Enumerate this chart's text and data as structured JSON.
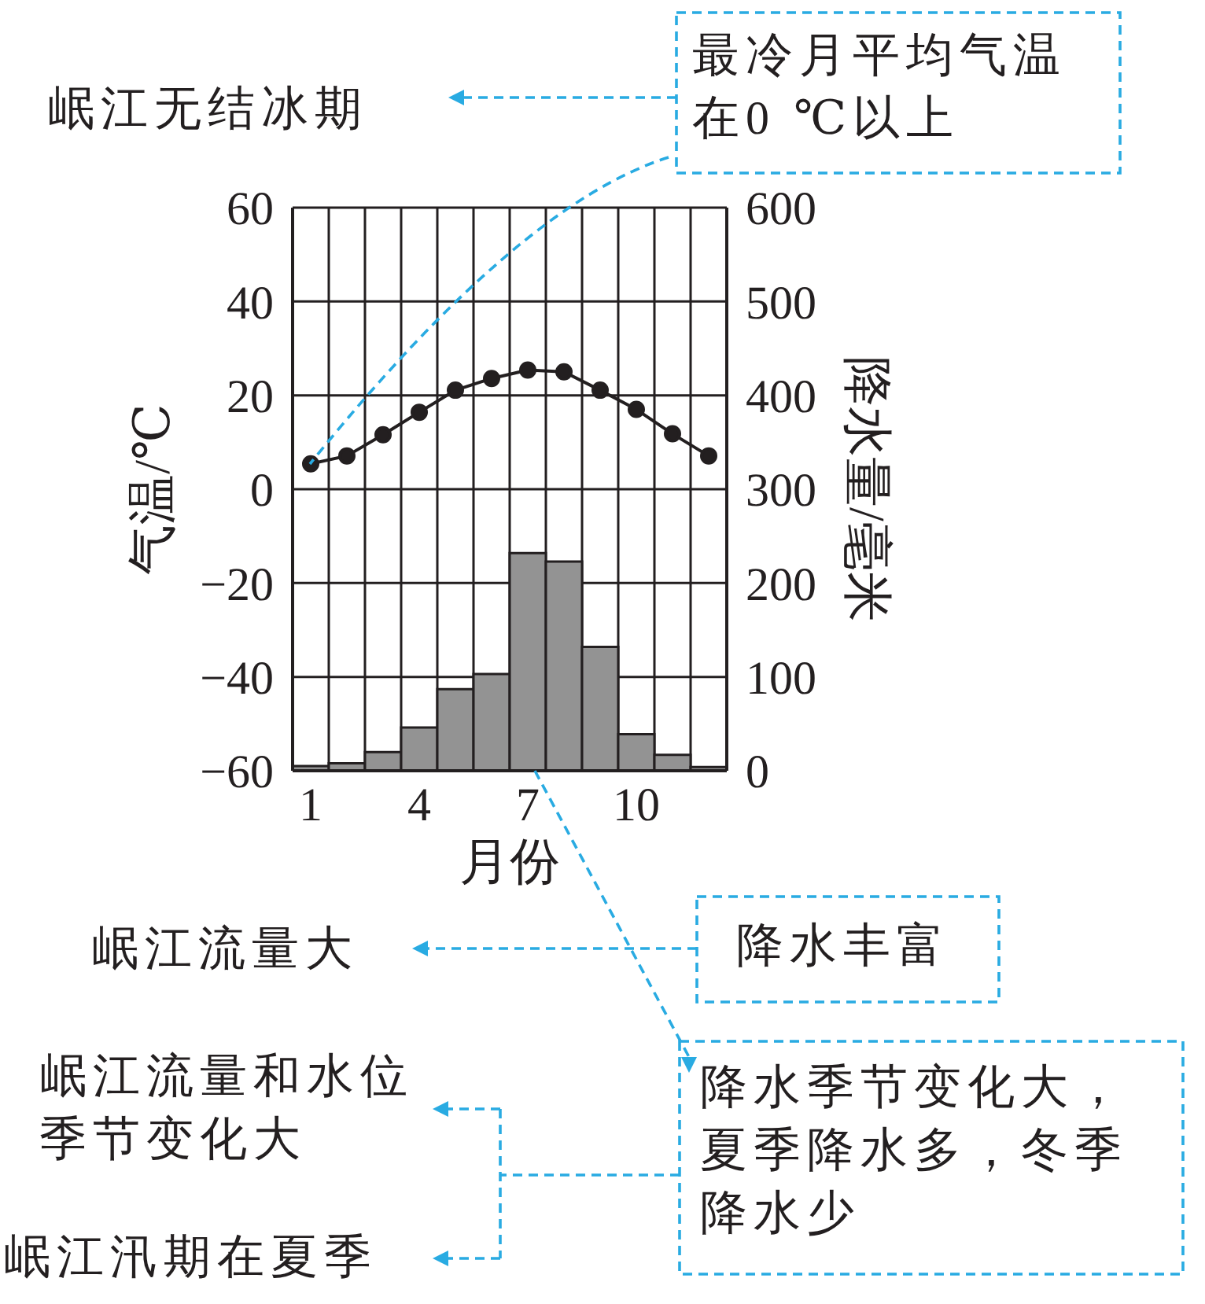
{
  "chart_data": {
    "type": "bar",
    "categories": [
      "1",
      null,
      null,
      "4",
      null,
      null,
      "7",
      null,
      null,
      "10",
      null,
      null
    ],
    "xlabel": "月份",
    "ylabel": "气温/℃",
    "y2label": "降水量/毫米",
    "series": [
      {
        "axis": "y2",
        "color": "#939393",
        "values": [
          5,
          8,
          20,
          46,
          87,
          103,
          232,
          223,
          132,
          39,
          17,
          4
        ]
      },
      {
        "type": "line",
        "axis": "y",
        "color": "#231f20",
        "marker": "circle",
        "values": [
          5.4,
          7.1,
          11.6,
          16.4,
          21.1,
          23.6,
          25.4,
          25,
          21.1,
          17,
          11.8,
          7.1
        ]
      }
    ],
    "ylim": [
      -60,
      60
    ],
    "yticks": [
      {
        "value": -60,
        "label": "−60"
      },
      {
        "value": -40,
        "label": "−40"
      },
      {
        "value": -20,
        "label": "−20"
      },
      0,
      20,
      40,
      60
    ],
    "y2lim": [
      0,
      600
    ],
    "y2ticks": [
      0,
      100,
      200,
      300,
      400,
      500,
      600
    ],
    "grid": true,
    "annotations": [
      "岷江无结冰期",
      "最冷月平均气温在0 ℃以上",
      "岷江流量大",
      "降水丰富",
      "岷江流量和水位季节变化大",
      "降水季节变化大，夏季降水多，冬季降水少",
      "岷江汛期在夏季"
    ]
  }
}
